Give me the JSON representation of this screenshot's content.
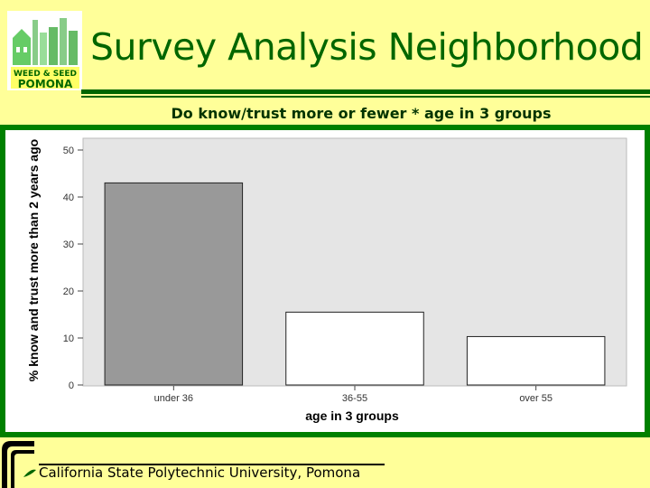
{
  "slide": {
    "title": "Survey Analysis Neighborhood",
    "logo_line1": "WEED & SEED",
    "logo_line2": "POMONA",
    "footer": "California State Polytechnic University, Pomona"
  },
  "colors": {
    "background": "#ffff99",
    "title": "#006600",
    "frame": "#008000",
    "plot_bg": "#e5e5e5",
    "bar_highlight": "#999999",
    "bar_default": "#ffffff"
  },
  "chart_data": {
    "type": "bar",
    "title": "Do know/trust more or fewer * age in 3 groups",
    "xlabel": "age in 3 groups",
    "ylabel": "% know and trust more than 2 years ago",
    "categories": [
      "under 36",
      "36-55",
      "over 55"
    ],
    "values": [
      43,
      15.5,
      10.3
    ],
    "bar_colors": [
      "#999999",
      "#ffffff",
      "#ffffff"
    ],
    "ylim": [
      0,
      50
    ],
    "yticks": [
      0,
      10,
      20,
      30,
      40,
      50
    ],
    "grid": false
  }
}
